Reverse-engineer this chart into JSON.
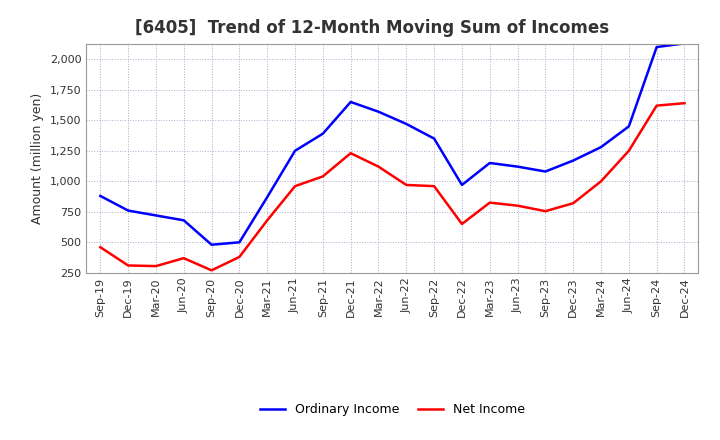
{
  "title": "[6405]  Trend of 12-Month Moving Sum of Incomes",
  "ylabel": "Amount (million yen)",
  "x_labels": [
    "Sep-19",
    "Dec-19",
    "Mar-20",
    "Jun-20",
    "Sep-20",
    "Dec-20",
    "Mar-21",
    "Jun-21",
    "Sep-21",
    "Dec-21",
    "Mar-22",
    "Jun-22",
    "Sep-22",
    "Dec-22",
    "Mar-23",
    "Jun-23",
    "Sep-23",
    "Dec-23",
    "Mar-24",
    "Jun-24",
    "Sep-24",
    "Dec-24"
  ],
  "ordinary_income": [
    880,
    760,
    720,
    680,
    480,
    500,
    870,
    1250,
    1390,
    1650,
    1570,
    1470,
    1350,
    970,
    1150,
    1120,
    1080,
    1170,
    1280,
    1450,
    2100,
    2130
  ],
  "net_income": [
    460,
    310,
    305,
    370,
    270,
    380,
    680,
    960,
    1040,
    1230,
    1120,
    970,
    960,
    650,
    825,
    800,
    755,
    820,
    1000,
    1250,
    1620,
    1640
  ],
  "ordinary_income_color": "#0000FF",
  "net_income_color": "#FF0000",
  "background_color": "#FFFFFF",
  "grid_color": "#AAAACC",
  "ylim_min": 250,
  "ylim_max": 2125,
  "yticks": [
    250,
    500,
    750,
    1000,
    1250,
    1500,
    1750,
    2000
  ],
  "title_fontsize": 12,
  "axis_label_fontsize": 9,
  "tick_fontsize": 8,
  "legend_fontsize": 9,
  "line_width": 1.8
}
